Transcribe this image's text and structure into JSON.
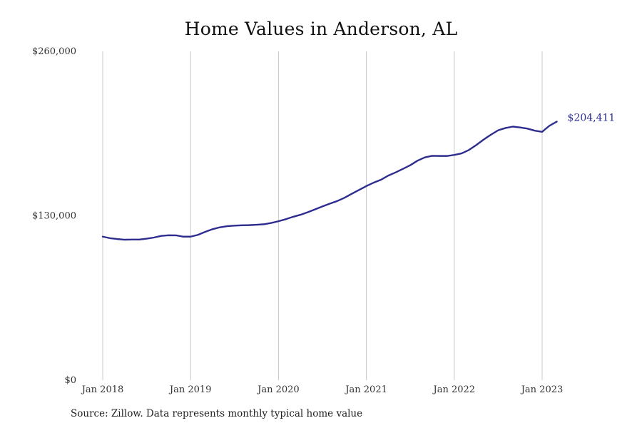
{
  "chart_data": {
    "type": "line",
    "title": "Home Values in Anderson, AL",
    "xlabel": "",
    "ylabel": "",
    "ylim": [
      0,
      260000
    ],
    "y_ticks": [
      0,
      130000,
      260000
    ],
    "y_tick_labels": [
      "$0",
      "$130,000",
      "$260,000"
    ],
    "x_ticks": [
      "2018-01",
      "2019-01",
      "2020-01",
      "2021-01",
      "2022-01",
      "2023-01"
    ],
    "x_tick_labels": [
      "Jan 2018",
      "Jan 2019",
      "Jan 2020",
      "Jan 2021",
      "Jan 2022",
      "Jan 2023"
    ],
    "grid": "vertical",
    "legend": "none",
    "series_color": "#2e2d8f",
    "end_label": "$204,411",
    "series": [
      {
        "x": [
          "2018-01",
          "2018-02",
          "2018-03",
          "2018-04",
          "2018-05",
          "2018-06",
          "2018-07",
          "2018-08",
          "2018-09",
          "2018-10",
          "2018-11",
          "2018-12",
          "2019-01",
          "2019-02",
          "2019-03",
          "2019-04",
          "2019-05",
          "2019-06",
          "2019-07",
          "2019-08",
          "2019-09",
          "2019-10",
          "2019-11",
          "2019-12",
          "2020-01",
          "2020-02",
          "2020-03",
          "2020-04",
          "2020-05",
          "2020-06",
          "2020-07",
          "2020-08",
          "2020-09",
          "2020-10",
          "2020-11",
          "2020-12",
          "2021-01",
          "2021-02",
          "2021-03",
          "2021-04",
          "2021-05",
          "2021-06",
          "2021-07",
          "2021-08",
          "2021-09",
          "2021-10",
          "2021-11",
          "2021-12",
          "2022-01",
          "2022-02",
          "2022-03",
          "2022-04",
          "2022-05",
          "2022-06",
          "2022-07",
          "2022-08",
          "2022-09",
          "2022-10",
          "2022-11",
          "2022-12",
          "2023-01",
          "2023-02",
          "2023-03"
        ],
        "values": [
          113500,
          112300,
          111600,
          111100,
          111200,
          111200,
          111900,
          112800,
          114100,
          114600,
          114500,
          113500,
          113500,
          114900,
          117300,
          119400,
          120900,
          121800,
          122200,
          122500,
          122600,
          122900,
          123300,
          124300,
          125700,
          127300,
          129200,
          130800,
          132800,
          135100,
          137400,
          139600,
          141600,
          144200,
          147400,
          150400,
          153500,
          156200,
          158500,
          161800,
          164300,
          167100,
          170000,
          173600,
          176200,
          177400,
          177300,
          177300,
          178100,
          179300,
          182000,
          185900,
          190200,
          194100,
          197600,
          199400,
          200500,
          199800,
          198900,
          197300,
          196400,
          201200,
          204411
        ]
      }
    ]
  },
  "source_note": "Source: Zillow. Data represents monthly typical home value"
}
